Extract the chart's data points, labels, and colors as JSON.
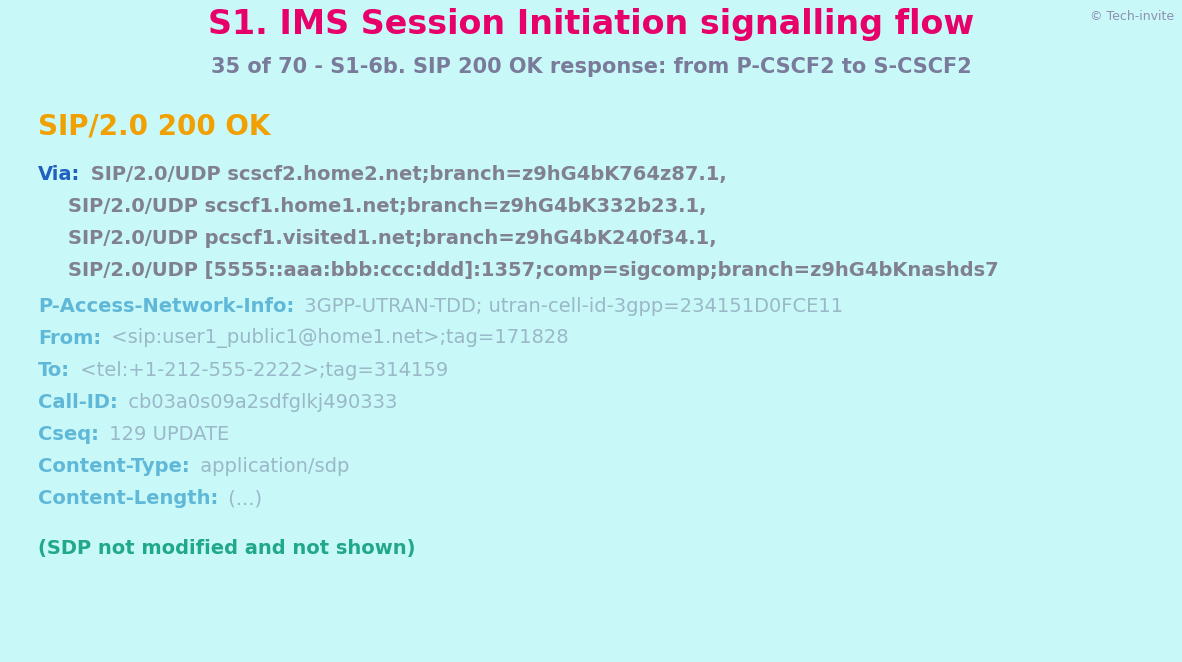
{
  "bg_color": "#c8f8f8",
  "header_bg_color": "#c8f8f8",
  "content_bg_color": "#f0fcfc",
  "title": "S1. IMS Session Initiation signalling flow",
  "title_color": "#e8006a",
  "subtitle": "35 of 70 - S1-6b. SIP 200 OK response: from P-CSCF2 to S-CSCF2",
  "subtitle_color": "#7a7a9a",
  "copyright": "© Tech-invite",
  "copyright_color": "#9090b0",
  "header_line": "SIP/2.0 200 OK",
  "header_color": "#f0a000",
  "via_label": "Via:",
  "via_label_color": "#2060c0",
  "via_values": [
    "SIP/2.0/UDP scscf2.home2.net;branch=z9hG4bK764z87.1,",
    "SIP/2.0/UDP scscf1.home1.net;branch=z9hG4bK332b23.1,",
    "SIP/2.0/UDP pcscf1.visited1.net;branch=z9hG4bK240f34.1,",
    "SIP/2.0/UDP [5555::aaa:bbb:ccc:ddd]:1357;comp=sigcomp;branch=z9hG4bKnashds7"
  ],
  "via_value_color": "#808090",
  "fields": [
    {
      "label": "P-Access-Network-Info:",
      "value": "3GPP-UTRAN-TDD; utran-cell-id-3gpp=234151D0FCE11",
      "label_color": "#60b8d8",
      "value_color": "#9ab8c8"
    },
    {
      "label": "From:",
      "value": "<sip:user1_public1@home1.net>;tag=171828",
      "label_color": "#60b8d8",
      "value_color": "#9ab8c8"
    },
    {
      "label": "To:",
      "value": "<tel:+1-212-555-2222>;tag=314159",
      "label_color": "#60b8d8",
      "value_color": "#9ab8c8"
    },
    {
      "label": "Call-ID:",
      "value": "cb03a0s09a2sdfglkj490333",
      "label_color": "#60b8d8",
      "value_color": "#9ab8c8"
    },
    {
      "label": "Cseq:",
      "value": "129 UPDATE",
      "label_color": "#60b8d8",
      "value_color": "#9ab8c8"
    },
    {
      "label": "Content-Type:",
      "value": "application/sdp",
      "label_color": "#60b8d8",
      "value_color": "#9ab8c8"
    },
    {
      "label": "Content-Length:",
      "value": "(...)",
      "label_color": "#60b8d8",
      "value_color": "#9ab8c8"
    }
  ],
  "footer": "(SDP not modified and not shown)",
  "footer_color": "#20a888"
}
